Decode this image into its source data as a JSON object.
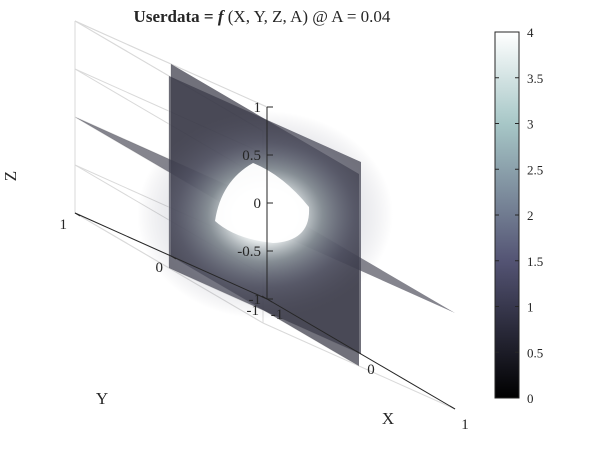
{
  "chart_data": {
    "type": "volume-slice",
    "title": {
      "bold_part": "Userdata = ",
      "italic_part": "f",
      "rest": " (X, Y, Z, A) @ A = 0.04"
    },
    "xlabel": "X",
    "ylabel": "Y",
    "zlabel": "Z",
    "xlim": [
      -1,
      1
    ],
    "ylim": [
      -1,
      1
    ],
    "zlim": [
      -1,
      1
    ],
    "xticks": [
      "-1",
      "0",
      "1"
    ],
    "yticks": [
      "-1",
      "0",
      "1"
    ],
    "zticks": [
      "-1",
      "-0.5",
      "0",
      "0.5",
      "1"
    ],
    "slices": {
      "x": 0,
      "y": 0,
      "z": 0
    },
    "colorbar": {
      "colormap": "bone",
      "clim": [
        0,
        4
      ],
      "ticks": [
        "0",
        "0.5",
        "1",
        "1.5",
        "2",
        "2.5",
        "3",
        "3.5",
        "4"
      ]
    },
    "grid": true,
    "box": true,
    "colors": {
      "slice_base": "#3a3a48",
      "core_glow": "#ffffff",
      "grid": "#d9d9d9",
      "axis": "#262626"
    }
  }
}
